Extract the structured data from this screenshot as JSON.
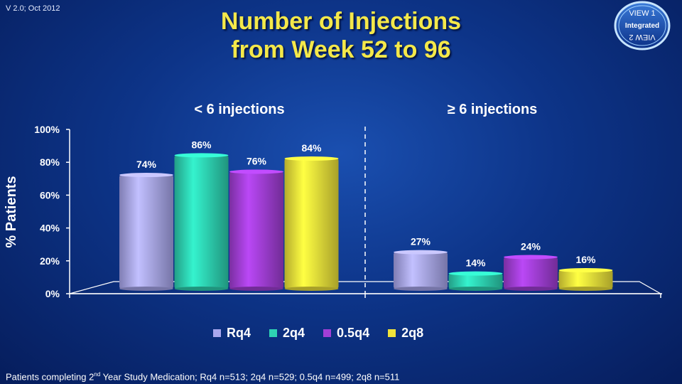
{
  "header": {
    "version": "V 2.0; Oct 2012",
    "title_line1": "Number of Injections",
    "title_line2": "from Week 52 to 96"
  },
  "logo": {
    "top_text": "VIEW 1",
    "middle_text": "Integrated",
    "bottom_text": "VIEW 2"
  },
  "footnote": {
    "prefix": "Patients completing 2",
    "superscript": "nd",
    "suffix": " Year Study Medication; Rq4 n=513; 2q4 n=529; 0.5q4 n=499; 2q8 n=511"
  },
  "chart_data": {
    "type": "bar",
    "groups": [
      "< 6 injections",
      "≥ 6 injections"
    ],
    "series": [
      {
        "name": "Rq4",
        "values": [
          74,
          27
        ],
        "color": "#a9a7ee",
        "labels": [
          "74%",
          "27%"
        ]
      },
      {
        "name": "2q4",
        "values": [
          86,
          14
        ],
        "color": "#2ed3b3",
        "labels": [
          "86%",
          "14%"
        ]
      },
      {
        "name": "0.5q4",
        "values": [
          76,
          24
        ],
        "color": "#a23fd6",
        "labels": [
          "76%",
          "24%"
        ]
      },
      {
        "name": "2q8",
        "values": [
          84,
          16
        ],
        "color": "#f0e43a",
        "labels": [
          "84%",
          "16%"
        ]
      }
    ],
    "ylabel": "% Patients",
    "ylim": [
      0,
      100
    ],
    "yticks": [
      "0%",
      "20%",
      "40%",
      "60%",
      "80%",
      "100%"
    ],
    "legend_position": "bottom"
  }
}
